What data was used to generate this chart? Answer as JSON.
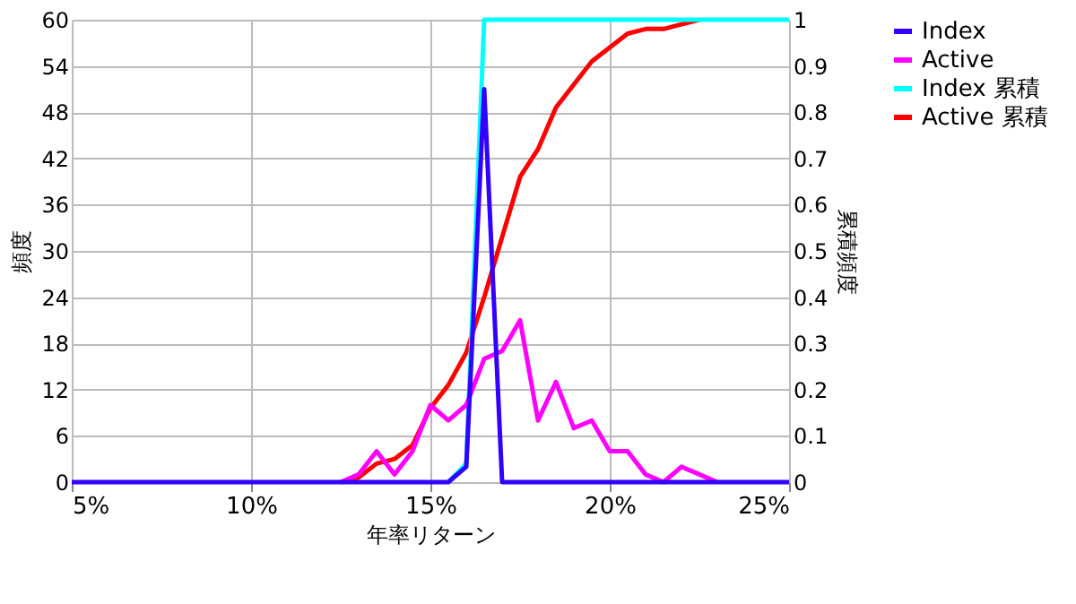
{
  "chart_data": {
    "type": "line",
    "x": [
      5,
      5.5,
      6,
      6.5,
      7,
      7.5,
      8,
      8.5,
      9,
      9.5,
      10,
      10.5,
      11,
      11.5,
      12,
      12.5,
      13,
      13.5,
      14,
      14.5,
      15,
      15.5,
      16,
      16.5,
      17,
      17.5,
      18,
      18.5,
      19,
      19.5,
      20,
      20.5,
      21,
      21.5,
      22,
      22.5,
      23,
      23.5,
      24,
      24.5,
      25
    ],
    "series": [
      {
        "name": "Index",
        "color": "#3300ff",
        "values": [
          0,
          0,
          0,
          0,
          0,
          0,
          0,
          0,
          0,
          0,
          0,
          0,
          0,
          0,
          0,
          0,
          0,
          0,
          0,
          0,
          0,
          0,
          2,
          51,
          0,
          0,
          0,
          0,
          0,
          0,
          0,
          0,
          0,
          0,
          0,
          0,
          0,
          0,
          0,
          0,
          0
        ]
      },
      {
        "name": "Active",
        "color": "#ff00ff",
        "values": [
          null,
          null,
          null,
          null,
          null,
          null,
          null,
          null,
          null,
          null,
          null,
          null,
          null,
          null,
          null,
          0,
          1,
          4,
          1,
          4,
          10,
          8,
          10,
          16,
          17,
          21,
          8,
          13,
          7,
          8,
          4,
          4,
          1,
          0,
          2,
          1,
          0,
          null,
          null,
          null,
          null
        ]
      },
      {
        "name": "Index 累積",
        "color": "#00ffff",
        "axis": "y2",
        "values": [
          null,
          null,
          null,
          null,
          null,
          null,
          null,
          null,
          null,
          null,
          null,
          null,
          null,
          null,
          null,
          null,
          null,
          null,
          null,
          null,
          null,
          0,
          0.04,
          1,
          1,
          1,
          1,
          1,
          1,
          1,
          1,
          1,
          1,
          1,
          1,
          1,
          1,
          1,
          1,
          1,
          1
        ]
      },
      {
        "name": "Active 累積",
        "color": "#ff0000",
        "axis": "y2",
        "values": [
          null,
          null,
          null,
          null,
          null,
          null,
          null,
          null,
          null,
          null,
          null,
          null,
          null,
          null,
          null,
          0,
          0.01,
          0.04,
          0.05,
          0.08,
          0.16,
          0.21,
          0.28,
          0.4,
          0.53,
          0.66,
          0.72,
          0.81,
          0.86,
          0.91,
          0.94,
          0.97,
          0.98,
          0.98,
          0.99,
          1,
          null,
          null,
          null,
          null,
          null
        ]
      }
    ],
    "xlabel": "年率リターン",
    "ylabel": "頻度",
    "y2label": "累積頻度",
    "xlim": [
      5,
      25
    ],
    "xticks": [
      {
        "value": 5,
        "label": "5%"
      },
      {
        "value": 10,
        "label": "10%"
      },
      {
        "value": 15,
        "label": "15%"
      },
      {
        "value": 20,
        "label": "20%"
      },
      {
        "value": 25,
        "label": "25%"
      }
    ],
    "ylim": [
      0,
      60
    ],
    "yticks": [
      0,
      6,
      12,
      18,
      24,
      30,
      36,
      42,
      48,
      54,
      60
    ],
    "y2lim": [
      0,
      1
    ],
    "y2ticks": [
      0,
      0.1,
      0.2,
      0.3,
      0.4,
      0.5,
      0.6,
      0.7,
      0.8,
      0.9,
      1
    ],
    "grid": true,
    "legend": "right",
    "marker": "none",
    "line_style": "solid"
  }
}
